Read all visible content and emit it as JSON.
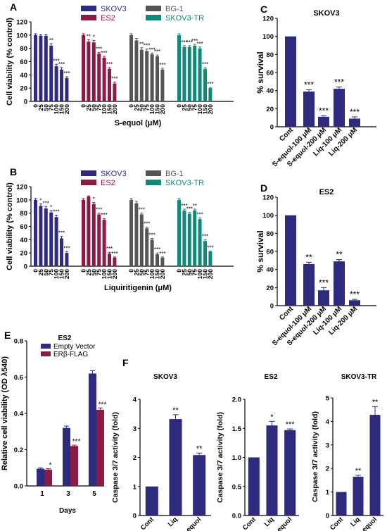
{
  "colors": {
    "SKOV3": "#2e2b7e",
    "ES2": "#8b1a46",
    "BG-1": "#555555",
    "SKOV3-TR": "#12887a",
    "single": "#2e2b7e",
    "Empty Vector": "#2e2b7e",
    "ERβ-FLAG": "#8b1a46",
    "axis": "#000000"
  },
  "chart_data": [
    {
      "id": "A",
      "panel_label": "A",
      "type": "bar",
      "ylabel": "Cell viability (% control)",
      "xlabel": "S-equol (μM)",
      "ylim": [
        0,
        120
      ],
      "yticks": [
        0,
        20,
        40,
        60,
        80,
        100,
        120
      ],
      "legend_placement": "top",
      "categories": [
        "0",
        "25",
        "50",
        "75",
        "100",
        "150",
        "200"
      ],
      "series": [
        {
          "name": "SKOV3",
          "values": [
            100,
            99,
            99,
            84,
            53,
            48,
            35
          ],
          "errors": [
            2,
            2,
            2,
            3,
            3,
            3,
            2
          ],
          "sig": [
            "",
            "",
            "",
            "**",
            "***",
            "***",
            "***"
          ]
        },
        {
          "name": "ES2",
          "values": [
            100,
            90,
            89,
            72,
            66,
            49,
            27
          ],
          "errors": [
            2,
            3,
            3,
            2,
            2,
            2,
            2
          ],
          "sig": [
            "",
            "**",
            "*",
            "***",
            "***",
            "***",
            "***"
          ]
        },
        {
          "name": "BG-1",
          "values": [
            100,
            92,
            78,
            76,
            71,
            68,
            48
          ],
          "errors": [
            2,
            3,
            3,
            3,
            2,
            2,
            2
          ],
          "sig": [
            "",
            "",
            "**",
            "***",
            "***",
            "***",
            "***"
          ]
        },
        {
          "name": "SKOV3-TR",
          "values": [
            100,
            82,
            82,
            84,
            80,
            49,
            20
          ],
          "errors": [
            2,
            2,
            2,
            2,
            2,
            2,
            1
          ],
          "sig": [
            "",
            "***",
            "***",
            "***",
            "***",
            "***",
            "***"
          ]
        }
      ]
    },
    {
      "id": "B",
      "panel_label": "B",
      "type": "bar",
      "ylabel": "Cell viability (% control)",
      "xlabel": "Liquiritigenin (μM)",
      "ylim": [
        0,
        120
      ],
      "yticks": [
        0,
        20,
        40,
        60,
        80,
        100,
        120
      ],
      "legend_placement": "top",
      "categories": [
        "0",
        "25",
        "50",
        "75",
        "100",
        "150",
        "200"
      ],
      "series": [
        {
          "name": "SKOV3",
          "values": [
            100,
            91,
            87,
            81,
            74,
            42,
            20
          ],
          "errors": [
            2,
            3,
            3,
            3,
            3,
            3,
            2
          ],
          "sig": [
            "",
            "*",
            "***",
            "*",
            "***",
            "***",
            "***"
          ]
        },
        {
          "name": "ES2",
          "values": [
            100,
            105,
            94,
            78,
            70,
            19,
            13
          ],
          "errors": [
            2,
            1,
            2,
            2,
            2,
            2,
            1
          ],
          "sig": [
            "",
            "",
            "*",
            "***",
            "***",
            "***",
            "***"
          ]
        },
        {
          "name": "BG-1",
          "values": [
            100,
            95,
            78,
            57,
            40,
            18,
            13
          ],
          "errors": [
            2,
            3,
            2,
            2,
            2,
            2,
            1
          ],
          "sig": [
            "",
            "",
            "***",
            "***",
            "***",
            "***",
            "***"
          ]
        },
        {
          "name": "SKOV3-TR",
          "values": [
            100,
            84,
            79,
            84,
            71,
            38,
            22
          ],
          "errors": [
            2,
            2,
            2,
            2,
            2,
            2,
            1
          ],
          "sig": [
            "",
            "***",
            "***",
            "**",
            "***",
            "***",
            "***"
          ]
        }
      ]
    },
    {
      "id": "C",
      "panel_label": "C",
      "type": "bar",
      "title": "SKOV3",
      "ylabel": "% survival",
      "ylim": [
        0,
        120
      ],
      "yticks": [
        0,
        20,
        40,
        60,
        80,
        100,
        120
      ],
      "categories": [
        "Cont",
        "S-equol-100 μM",
        "S-equol-200 μM",
        "Liq-100 μM",
        "Liq-200 μM"
      ],
      "values": [
        100,
        39,
        11,
        42,
        9
      ],
      "errors": [
        0,
        2,
        1,
        2,
        2
      ],
      "sig": [
        "",
        "***",
        "***",
        "***",
        "***"
      ]
    },
    {
      "id": "D",
      "panel_label": "D",
      "type": "bar",
      "title": "ES2",
      "ylabel": "% survival",
      "ylim": [
        0,
        120
      ],
      "yticks": [
        0,
        20,
        40,
        60,
        80,
        100,
        120
      ],
      "categories": [
        "Cont",
        "S-equol-100 μM",
        "S-equol-200 μM",
        "Liq-100 μM",
        "Liq-200 μM"
      ],
      "values": [
        100,
        46,
        17,
        49,
        6
      ],
      "errors": [
        0,
        2,
        3,
        2,
        1
      ],
      "sig": [
        "",
        "**",
        "***",
        "**",
        "***"
      ]
    },
    {
      "id": "E",
      "panel_label": "E",
      "type": "bar",
      "title": "ES2",
      "ylabel": "Relative cell viability (OD λ540)",
      "xlabel": "Days",
      "ylim": [
        0,
        0.8
      ],
      "yticks": [
        0.0,
        0.2,
        0.4,
        0.6,
        0.8
      ],
      "ytick_labels": [
        "0.0",
        "0.2",
        "0.4",
        "0.6",
        "0.8"
      ],
      "legend_placement": "top-left",
      "categories": [
        "1",
        "3",
        "5"
      ],
      "series": [
        {
          "name": "Empty Vector",
          "values": [
            0.095,
            0.32,
            0.62
          ],
          "errors": [
            0.005,
            0.01,
            0.015
          ]
        },
        {
          "name": "ERβ-FLAG",
          "values": [
            0.09,
            0.22,
            0.42
          ],
          "errors": [
            0.005,
            0.005,
            0.01
          ]
        }
      ],
      "sig": [
        [
          "",
          "*"
        ],
        [
          "",
          "***"
        ],
        [
          "",
          "***"
        ]
      ]
    },
    {
      "id": "F1",
      "panel_label": "F",
      "type": "bar",
      "title": "SKOV3",
      "ylabel": "Caspase 3/7 activity (fold)",
      "ylim": [
        0,
        4
      ],
      "yticks": [
        0,
        1,
        2,
        3,
        4
      ],
      "ytick_labels": [
        "0",
        "1",
        "2",
        "3",
        "4"
      ],
      "categories": [
        "Cont",
        "Liq",
        "S-equol"
      ],
      "values": [
        1.0,
        3.32,
        2.08
      ],
      "errors": [
        0,
        0.15,
        0.07
      ],
      "sig": [
        "",
        "**",
        "**"
      ]
    },
    {
      "id": "F2",
      "type": "bar",
      "title": "ES2",
      "ylabel": "Caspase 3/7 activity (fold)",
      "ylim": [
        0,
        2.0
      ],
      "yticks": [
        0,
        0.5,
        1.0,
        1.5,
        2.0
      ],
      "ytick_labels": [
        "0.0",
        "0.5",
        "1.0",
        "1.5",
        "2.0"
      ],
      "categories": [
        "Cont",
        "Liq",
        "S-equol"
      ],
      "values": [
        1.0,
        1.55,
        1.47
      ],
      "errors": [
        0,
        0.07,
        0.02
      ],
      "sig": [
        "",
        "*",
        "***"
      ]
    },
    {
      "id": "F3",
      "type": "bar",
      "title": "SKOV3-TR",
      "ylabel": "Caspase 3/7 activity (fold)",
      "ylim": [
        0,
        5
      ],
      "yticks": [
        0,
        1,
        2,
        3,
        4,
        5
      ],
      "ytick_labels": [
        "0",
        "1",
        "2",
        "3",
        "4",
        "5"
      ],
      "categories": [
        "Cont",
        "Liq",
        "S-equol"
      ],
      "values": [
        1.0,
        1.65,
        4.28
      ],
      "errors": [
        0,
        0.06,
        0.35
      ],
      "sig": [
        "",
        "**",
        "**"
      ]
    }
  ]
}
